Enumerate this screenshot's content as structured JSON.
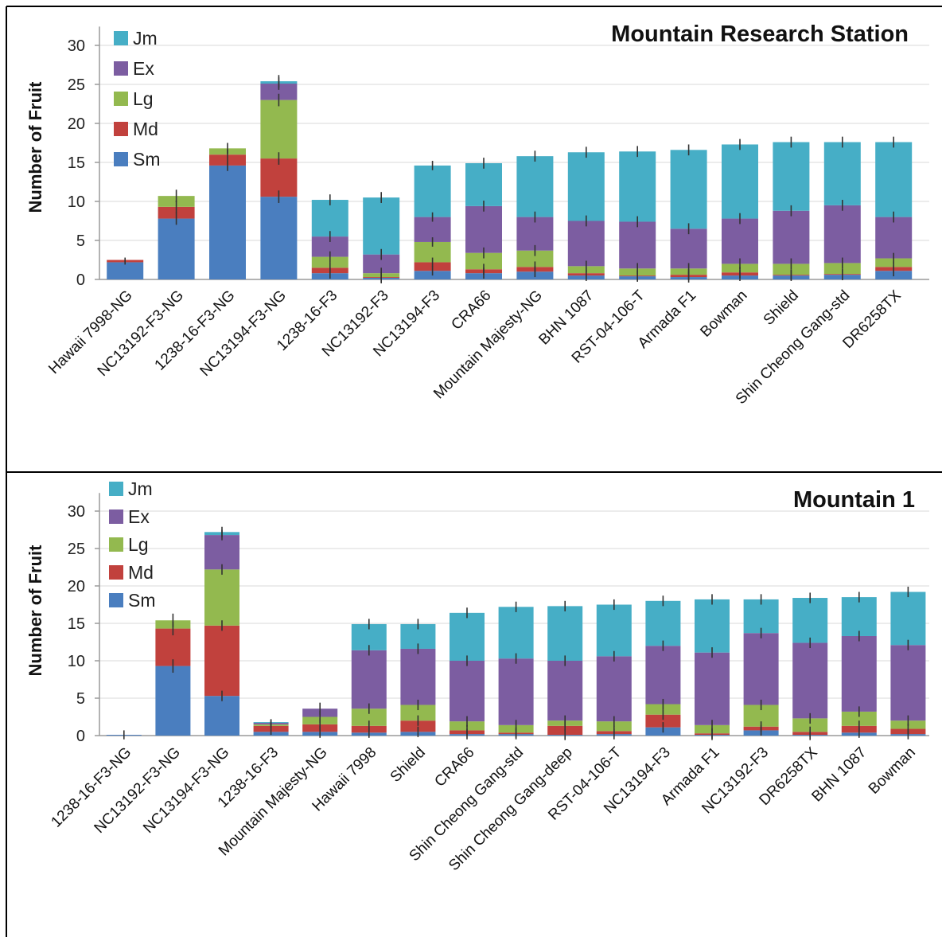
{
  "colors": {
    "Sm": "#4a7ebf",
    "Md": "#c1413d",
    "Lg": "#93b94f",
    "Ex": "#7c5da1",
    "Jm": "#46aec6",
    "grid": "#d9d9d9",
    "axis": "#9a9a9a",
    "errorbar": "#333333",
    "border": "#000000"
  },
  "chart_data": [
    {
      "type": "bar",
      "stacked": true,
      "title": "Mountain Research Station",
      "ylabel": "Number of Fruit",
      "xlabel": "",
      "ylim": [
        0,
        32
      ],
      "yticks": [
        0,
        5,
        10,
        15,
        20,
        25,
        30
      ],
      "grid": true,
      "legend_position": "top-left",
      "legend": [
        "Jm",
        "Ex",
        "Lg",
        "Md",
        "Sm"
      ],
      "categories": [
        "Hawaii 7998-NG",
        "NC13192-F3-NG",
        "1238-16-F3-NG",
        "NC13194-F3-NG",
        "1238-16-F3",
        "NC13192-F3",
        "NC13194-F3",
        "CRA66",
        "Mountain Majesty-NG",
        "BHN 1087",
        "RST-04-106-T",
        "Armada F1",
        "Bowman",
        "Shield",
        "Shin Cheong Gang-std",
        "DR6258TX"
      ],
      "series": [
        {
          "name": "Sm",
          "values": [
            2.2,
            7.8,
            14.6,
            10.6,
            0.8,
            0.2,
            1.1,
            0.8,
            1.0,
            0.5,
            0.4,
            0.3,
            0.5,
            0.5,
            0.6,
            1.1
          ]
        },
        {
          "name": "Md",
          "values": [
            0.3,
            1.5,
            1.4,
            4.9,
            0.7,
            0.1,
            1.1,
            0.5,
            0.6,
            0.3,
            0.1,
            0.3,
            0.4,
            0.1,
            0.1,
            0.5
          ]
        },
        {
          "name": "Lg",
          "values": [
            0.0,
            1.4,
            0.8,
            7.5,
            1.4,
            0.5,
            2.6,
            2.1,
            2.1,
            0.9,
            0.9,
            0.8,
            1.1,
            1.4,
            1.4,
            1.1
          ]
        },
        {
          "name": "Ex",
          "values": [
            0.0,
            0.0,
            0.0,
            2.1,
            2.6,
            2.4,
            3.2,
            6.0,
            4.3,
            5.8,
            6.0,
            5.1,
            5.8,
            6.8,
            7.4,
            5.3
          ]
        },
        {
          "name": "Jm",
          "values": [
            0.0,
            0.0,
            0.0,
            0.3,
            4.7,
            7.3,
            6.6,
            5.5,
            7.8,
            8.8,
            9.0,
            10.1,
            9.5,
            8.8,
            8.1,
            9.6
          ]
        }
      ],
      "error": [
        0.3,
        0.8,
        0.7,
        0.8,
        0.7,
        0.7,
        0.6,
        0.7,
        0.7,
        0.7,
        0.7,
        0.7,
        0.7,
        0.7,
        0.7,
        0.7
      ]
    },
    {
      "type": "bar",
      "stacked": true,
      "title": "Mountain 1",
      "ylabel": "Number of Fruit",
      "xlabel": "",
      "ylim": [
        0,
        32
      ],
      "yticks": [
        0,
        5,
        10,
        15,
        20,
        25,
        30
      ],
      "grid": true,
      "legend_position": "top-left",
      "legend": [
        "Jm",
        "Ex",
        "Lg",
        "Md",
        "Sm"
      ],
      "categories": [
        "1238-16-F3-NG",
        "NC13192-F3-NG",
        "NC13194-F3-NG",
        "1238-16-F3",
        "Mountain Majesty-NG",
        "Hawaii 7998",
        "Shield",
        "CRA66",
        "Shin Cheong Gang-std",
        "Shin Cheong Gang-deep",
        "RST-04-106-T",
        "NC13194-F3",
        "Armada F1",
        "NC13192-F3",
        "DR6258TX",
        "BHN 1087",
        "Bowman"
      ],
      "series": [
        {
          "name": "Sm",
          "values": [
            0.1,
            9.3,
            5.3,
            0.5,
            0.5,
            0.4,
            0.5,
            0.2,
            0.2,
            0.1,
            0.2,
            1.1,
            0.1,
            0.7,
            0.1,
            0.4,
            0.2
          ]
        },
        {
          "name": "Md",
          "values": [
            0.0,
            5.0,
            9.4,
            0.8,
            1.0,
            0.9,
            1.5,
            0.5,
            0.2,
            1.2,
            0.4,
            1.7,
            0.2,
            0.5,
            0.4,
            0.9,
            0.7
          ]
        },
        {
          "name": "Lg",
          "values": [
            0.0,
            1.1,
            7.5,
            0.2,
            1.0,
            2.3,
            2.1,
            1.2,
            1.0,
            0.7,
            1.3,
            1.4,
            1.1,
            2.9,
            1.8,
            1.9,
            1.1
          ]
        },
        {
          "name": "Ex",
          "values": [
            0.0,
            0.0,
            4.6,
            0.2,
            1.1,
            7.8,
            7.5,
            8.1,
            8.9,
            8.0,
            8.7,
            7.8,
            9.7,
            9.6,
            10.1,
            10.1,
            10.1
          ]
        },
        {
          "name": "Jm",
          "values": [
            0.0,
            0.0,
            0.4,
            0.1,
            0.0,
            3.5,
            3.3,
            6.4,
            6.9,
            7.3,
            6.9,
            6.0,
            7.1,
            4.5,
            6.0,
            5.2,
            7.1
          ]
        }
      ],
      "error": [
        0.6,
        0.9,
        0.7,
        0.4,
        0.8,
        0.7,
        0.7,
        0.7,
        0.7,
        0.7,
        0.7,
        0.7,
        0.7,
        0.7,
        0.7,
        0.7,
        0.7
      ]
    }
  ]
}
